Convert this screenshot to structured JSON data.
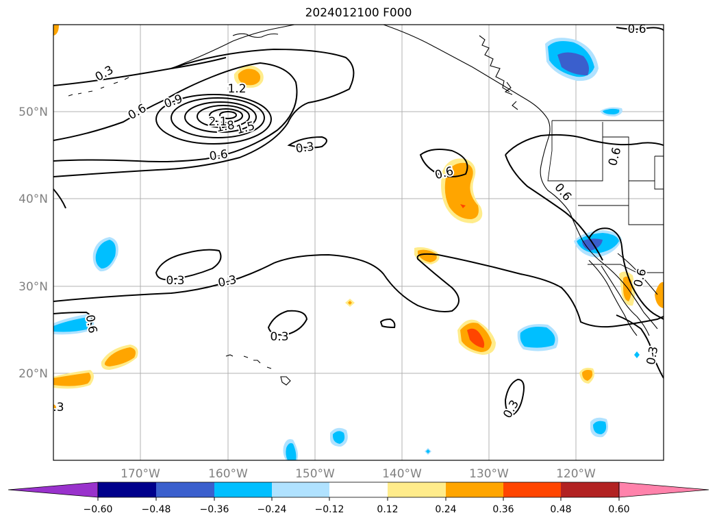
{
  "title": "2024012100 F000",
  "latitude_labels": [
    "50°N",
    "40°N",
    "30°N",
    "20°N"
  ],
  "longitude_labels": [
    "170°W",
    "160°W",
    "150°W",
    "140°W",
    "130°W",
    "120°W"
  ],
  "contour_labels": [
    "0.3",
    "0.6",
    "0.9",
    "1.2",
    "1.5",
    "1.8",
    "2.1",
    "0.6",
    "0.3",
    "0.6",
    "0.3",
    "0.3",
    "0.6",
    "0.6",
    "0.6",
    "0.6",
    "0.3",
    "0.6",
    "0.3",
    "0.3",
    "0.3"
  ],
  "colorbar": {
    "ticks": [
      "−0.60",
      "−0.48",
      "−0.36",
      "−0.24",
      "−0.12",
      "0.12",
      "0.24",
      "0.36",
      "0.48",
      "0.60"
    ],
    "colors": [
      "#9932cc",
      "#00008b",
      "#3a5fcd",
      "#00bfff",
      "#b0e2ff",
      "#ffffff",
      "#ffec8b",
      "#ffa500",
      "#ff4500",
      "#b22222",
      "#ff82ab"
    ]
  },
  "colors": {
    "frame": "#000000",
    "grid": "#b0b0b0",
    "axis_label": "#808080"
  }
}
